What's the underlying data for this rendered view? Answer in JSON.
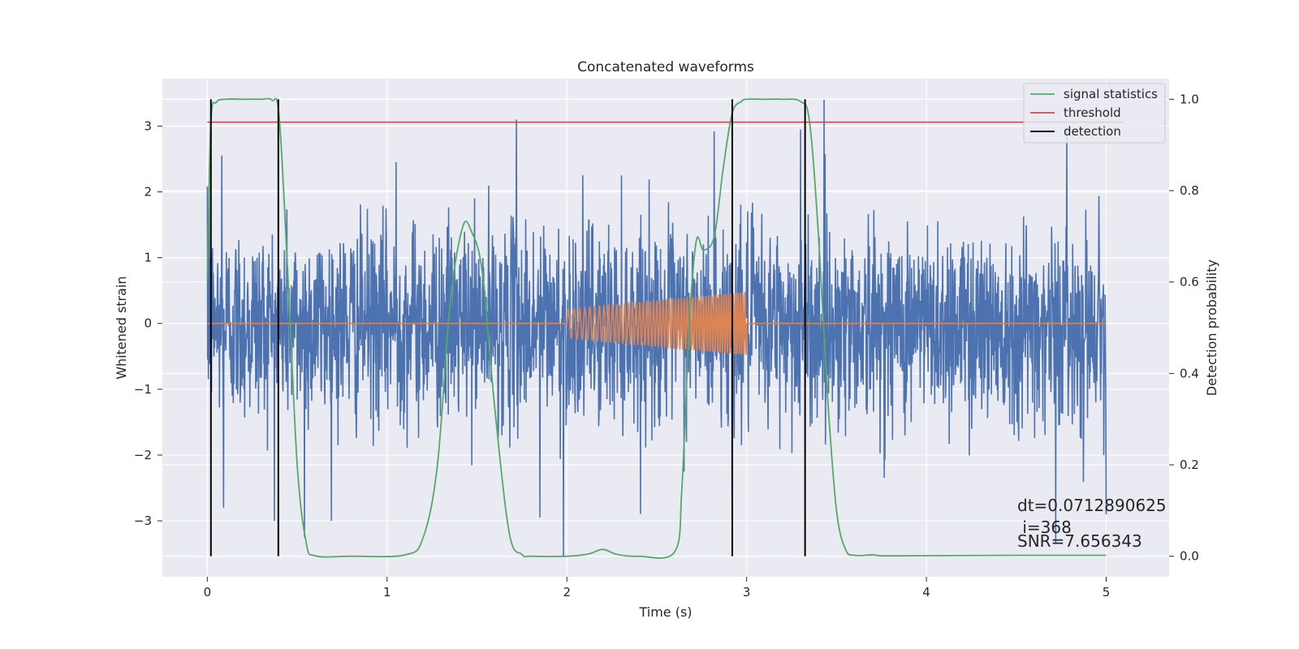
{
  "chart_data": {
    "type": "line",
    "title": "Concatenated waveforms",
    "xlabel": "Time (s)",
    "ylabel": "Whitened strain",
    "y2label": "Detection probability",
    "xlim": [
      -0.25,
      5.35
    ],
    "ylim": [
      -3.85,
      3.72
    ],
    "y2lim": [
      -0.045,
      1.045
    ],
    "xticks": [
      0,
      1,
      2,
      3,
      4,
      5
    ],
    "xtick_labels": [
      "0",
      "1",
      "2",
      "3",
      "4",
      "5"
    ],
    "yticks": [
      -3,
      -2,
      -1,
      0,
      1,
      2,
      3
    ],
    "ytick_labels": [
      "−3",
      "−2",
      "−1",
      "0",
      "1",
      "2",
      "3"
    ],
    "y2ticks": [
      0.0,
      0.2,
      0.4,
      0.6,
      0.8,
      1.0
    ],
    "y2tick_labels": [
      "0.0",
      "0.2",
      "0.4",
      "0.6",
      "0.8",
      "1.0"
    ],
    "grid": true,
    "legend_position": "top-right",
    "colors": {
      "strain": "#4c72b0",
      "injected": "#dd8452",
      "signal_statistics": "#55a868",
      "threshold": "#c44e52",
      "detection": "#000000",
      "background": "#eaeaf2",
      "grid": "#ffffff"
    },
    "series": [
      {
        "name": "whitened strain",
        "type": "noise",
        "x_range": [
          0,
          5
        ],
        "sigma": 0.75,
        "peaks": [
          [
            0.01,
            2.1
          ],
          [
            0.08,
            2.55
          ],
          [
            0.09,
            -2.8
          ],
          [
            0.54,
            -3.25
          ],
          [
            1.05,
            2.45
          ],
          [
            1.72,
            3.1
          ],
          [
            1.85,
            -2.95
          ],
          [
            1.98,
            -3.55
          ],
          [
            2.82,
            2.92
          ],
          [
            2.92,
            -2.7
          ],
          [
            3.3,
            2.95
          ],
          [
            3.43,
            3.4
          ],
          [
            4.72,
            -3.35
          ],
          [
            4.78,
            2.95
          ],
          [
            5.0,
            -2.9
          ]
        ]
      },
      {
        "name": "injected waveform",
        "type": "chirp",
        "t_start": 2.0,
        "t_end": 3.0,
        "amp_start": 0.22,
        "amp_end": 0.48,
        "freq_start": 30,
        "freq_end": 80
      },
      {
        "name": "signal statistics",
        "axis": "right",
        "x": [
          0,
          0.02,
          0.05,
          0.1,
          0.2,
          0.3,
          0.36,
          0.4,
          0.45,
          0.5,
          0.55,
          0.6,
          0.8,
          1.1,
          1.2,
          1.28,
          1.35,
          1.42,
          1.47,
          1.53,
          1.6,
          1.68,
          1.75,
          1.8,
          2.0,
          2.12,
          2.2,
          2.28,
          2.4,
          2.6,
          2.64,
          2.68,
          2.72,
          2.76,
          2.82,
          2.87,
          2.92,
          2.97,
          3.0,
          3.1,
          3.2,
          3.3,
          3.35,
          3.4,
          3.45,
          3.5,
          3.55,
          3.6,
          3.7,
          3.75,
          3.9,
          4.5,
          5.0
        ],
        "values": [
          0.6,
          0.95,
          0.993,
          1.0,
          1.0,
          1.0,
          0.998,
          0.96,
          0.6,
          0.2,
          0.03,
          0.001,
          0.0,
          0.003,
          0.04,
          0.2,
          0.55,
          0.72,
          0.71,
          0.62,
          0.32,
          0.05,
          0.004,
          0.0,
          0.0,
          0.005,
          0.015,
          0.004,
          0.0,
          0.01,
          0.15,
          0.5,
          0.69,
          0.67,
          0.7,
          0.85,
          0.97,
          0.995,
          1.0,
          1.0,
          1.0,
          0.995,
          0.95,
          0.7,
          0.35,
          0.1,
          0.015,
          0.002,
          0.003,
          0.001,
          0.001,
          0.002,
          0.002
        ]
      },
      {
        "name": "threshold",
        "axis": "right",
        "x": [
          0,
          5.1
        ],
        "values": [
          0.95,
          0.95
        ]
      },
      {
        "name": "detection",
        "axis": "right",
        "x": [
          0.02,
          0.395,
          2.92,
          3.325
        ],
        "range": [
          0.0,
          1.0
        ]
      }
    ],
    "legend": [
      "signal statistics",
      "threshold",
      "detection"
    ],
    "annotations": [
      "dt=0.0712890625",
      " i=368",
      "SNR=7.656343"
    ]
  }
}
